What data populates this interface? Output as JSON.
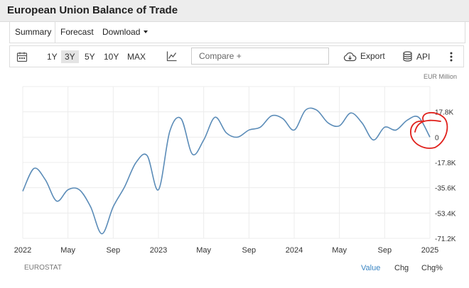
{
  "header": {
    "title": "European Union Balance of Trade"
  },
  "nav": {
    "summary": "Summary",
    "forecast": "Forecast",
    "download": "Download"
  },
  "toolbar": {
    "ranges": [
      "1Y",
      "3Y",
      "5Y",
      "10Y",
      "MAX"
    ],
    "active_range": "3Y",
    "compare_placeholder": "Compare +",
    "export": "Export",
    "api": "API"
  },
  "chart_data": {
    "type": "line",
    "unit_label": "EUR Million",
    "x_tick_labels": [
      "2022",
      "May",
      "Sep",
      "2023",
      "May",
      "Sep",
      "2024",
      "May",
      "Sep",
      "2025"
    ],
    "y_ticks": [
      17.8,
      0,
      -17.8,
      -35.6,
      -53.4,
      -71.2
    ],
    "y_tick_labels": [
      "17.8K",
      "0",
      "-17.8K",
      "-35.6K",
      "-53.4K",
      "-71.2K"
    ],
    "y_range": [
      -71.2,
      35.6
    ],
    "grid": true,
    "series": [
      {
        "color": "#5b8cb8",
        "points": [
          [
            "2022-01",
            -38
          ],
          [
            "2022-02",
            -22
          ],
          [
            "2022-03",
            -30
          ],
          [
            "2022-04",
            -45
          ],
          [
            "2022-05",
            -37
          ],
          [
            "2022-06",
            -37
          ],
          [
            "2022-07",
            -49
          ],
          [
            "2022-08",
            -68
          ],
          [
            "2022-09",
            -49
          ],
          [
            "2022-10",
            -35
          ],
          [
            "2022-11",
            -18
          ],
          [
            "2022-12",
            -13
          ],
          [
            "2023-01",
            -37
          ],
          [
            "2023-02",
            4
          ],
          [
            "2023-03",
            13
          ],
          [
            "2023-04",
            -12
          ],
          [
            "2023-05",
            -2
          ],
          [
            "2023-06",
            14
          ],
          [
            "2023-07",
            3
          ],
          [
            "2023-08",
            0
          ],
          [
            "2023-09",
            5
          ],
          [
            "2023-10",
            7
          ],
          [
            "2023-11",
            15
          ],
          [
            "2023-12",
            13
          ],
          [
            "2024-01",
            5
          ],
          [
            "2024-02",
            19
          ],
          [
            "2024-03",
            19
          ],
          [
            "2024-04",
            10
          ],
          [
            "2024-05",
            8
          ],
          [
            "2024-06",
            17
          ],
          [
            "2024-07",
            10
          ],
          [
            "2024-08",
            -2
          ],
          [
            "2024-09",
            7
          ],
          [
            "2024-10",
            5
          ],
          [
            "2024-11",
            12
          ],
          [
            "2024-12",
            14
          ],
          [
            "2025-01",
            0
          ]
        ]
      }
    ]
  },
  "annotation": {
    "color": "#e0201b"
  },
  "footer": {
    "source": "EUROSTAT",
    "tabs": [
      "Value",
      "Chg",
      "Chg%"
    ],
    "active_tab": "Value"
  }
}
